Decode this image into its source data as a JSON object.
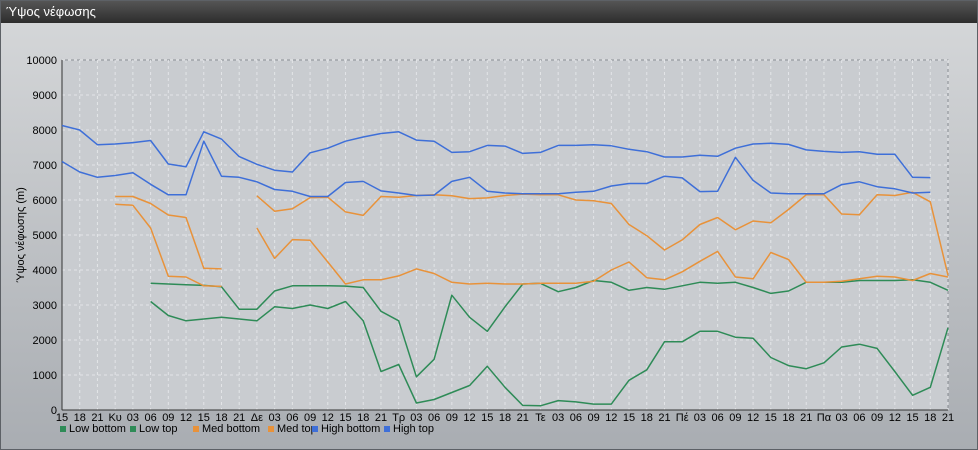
{
  "window": {
    "title": "Ύψος νέφωσης"
  },
  "chart_data": {
    "type": "line",
    "title": "",
    "xlabel": "",
    "ylabel": "Ύψος νέφωσης (m)",
    "ylim": [
      0,
      10000
    ],
    "y_ticks": [
      0,
      1000,
      2000,
      3000,
      4000,
      5000,
      6000,
      7000,
      8000,
      9000,
      10000
    ],
    "x_ticks": [
      "15",
      "18",
      "21",
      "Κυ",
      "03",
      "06",
      "09",
      "12",
      "15",
      "18",
      "21",
      "Δε",
      "03",
      "06",
      "09",
      "12",
      "15",
      "18",
      "21",
      "Τρ",
      "03",
      "06",
      "09",
      "12",
      "15",
      "18",
      "21",
      "Τε",
      "03",
      "06",
      "09",
      "12",
      "15",
      "18",
      "21",
      "Πέ",
      "03",
      "06",
      "09",
      "12",
      "15",
      "18",
      "21",
      "Πα",
      "03",
      "06",
      "09",
      "12",
      "15",
      "18",
      "21"
    ],
    "grid": true,
    "legend": "bottom-left",
    "series": [
      {
        "name": "Low bottom",
        "color": "#2e8b57",
        "values": [
          null,
          null,
          null,
          null,
          null,
          3100,
          2700,
          2550,
          2600,
          2650,
          2600,
          2550,
          2950,
          2900,
          3000,
          2900,
          3100,
          2550,
          1100,
          1300,
          200,
          300,
          500,
          700,
          1250,
          650,
          130,
          120,
          270,
          230,
          170,
          170,
          850,
          1150,
          1950,
          1950,
          2250,
          2250,
          2080,
          2050,
          1500,
          1270,
          1180,
          1350,
          1800,
          1880,
          1760,
          1100,
          420,
          650,
          2350
        ]
      },
      {
        "name": "Low top",
        "color": "#2e8b57",
        "values": [
          null,
          null,
          null,
          null,
          null,
          3620,
          3600,
          3580,
          3560,
          3520,
          2880,
          2880,
          3400,
          3550,
          3550,
          3550,
          3540,
          3500,
          2820,
          2550,
          950,
          1450,
          3280,
          2650,
          2250,
          2950,
          3600,
          3620,
          3380,
          3500,
          3700,
          3650,
          3420,
          3500,
          3450,
          3550,
          3650,
          3620,
          3650,
          3500,
          3330,
          3400,
          3650,
          3650,
          3650,
          3700,
          3700,
          3700,
          3720,
          3650,
          3420
        ]
      },
      {
        "name": "Med bottom",
        "color": "#e8923a",
        "values": [
          null,
          null,
          null,
          5880,
          5850,
          5200,
          3820,
          3800,
          3550,
          3530,
          null,
          5200,
          4330,
          4870,
          4850,
          4230,
          3600,
          3720,
          3720,
          3830,
          4030,
          3900,
          3650,
          3600,
          3620,
          3600,
          3600,
          3620,
          3620,
          3620,
          3680,
          4000,
          4230,
          3780,
          3720,
          3950,
          4250,
          4530,
          3800,
          3750,
          4500,
          4300,
          3650,
          3650,
          3680,
          3750,
          3820,
          3800,
          3700,
          3900,
          3800
        ]
      },
      {
        "name": "Med top",
        "color": "#e8923a",
        "values": [
          null,
          null,
          null,
          6100,
          6100,
          5900,
          5570,
          5500,
          4050,
          4030,
          null,
          6120,
          5680,
          5750,
          6070,
          6080,
          5660,
          5560,
          6100,
          6080,
          6130,
          6150,
          6120,
          6040,
          6060,
          6130,
          6170,
          6150,
          6150,
          6000,
          5980,
          5900,
          5300,
          4980,
          4570,
          4860,
          5300,
          5500,
          5150,
          5400,
          5350,
          5730,
          6150,
          6150,
          5600,
          5580,
          6150,
          6130,
          6220,
          5950,
          3850
        ]
      },
      {
        "name": "High bottom",
        "color": "#3e6fd8",
        "values": [
          7100,
          6800,
          6650,
          6700,
          6780,
          6450,
          6150,
          6150,
          7680,
          6680,
          6650,
          6520,
          6300,
          6250,
          6100,
          6100,
          6500,
          6530,
          6260,
          6200,
          6130,
          6140,
          6530,
          6650,
          6250,
          6200,
          6180,
          6180,
          6180,
          6220,
          6250,
          6400,
          6470,
          6470,
          6680,
          6630,
          6240,
          6250,
          7220,
          6560,
          6200,
          6180,
          6180,
          6180,
          6440,
          6520,
          6380,
          6320,
          6200,
          6220,
          null
        ]
      },
      {
        "name": "High top",
        "color": "#3e6fd8",
        "values": [
          8130,
          8000,
          7580,
          7600,
          7640,
          7700,
          7030,
          6950,
          7950,
          7740,
          7240,
          7020,
          6850,
          6800,
          7350,
          7480,
          7680,
          7800,
          7900,
          7950,
          7710,
          7680,
          7360,
          7380,
          7560,
          7540,
          7330,
          7360,
          7560,
          7560,
          7580,
          7550,
          7450,
          7380,
          7230,
          7230,
          7280,
          7250,
          7480,
          7600,
          7620,
          7590,
          7430,
          7390,
          7360,
          7380,
          7310,
          7310,
          6650,
          6640,
          null
        ]
      }
    ]
  }
}
